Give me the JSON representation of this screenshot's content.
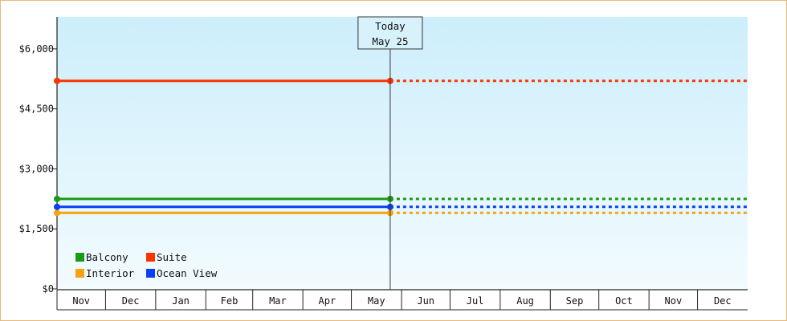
{
  "chart_data": {
    "type": "line",
    "title": "",
    "xlabel": "",
    "ylabel": "",
    "y_ticks": [
      "$0",
      "$1,500",
      "$3,000",
      "$4,500",
      "$6,000"
    ],
    "y_tick_values": [
      0,
      1500,
      3000,
      4500,
      6000
    ],
    "ylim": [
      0,
      6800
    ],
    "x_months": [
      "Nov",
      "Dec",
      "Jan",
      "Feb",
      "Mar",
      "Apr",
      "May",
      "Jun",
      "Jul",
      "Aug",
      "Sep",
      "Oct",
      "Nov",
      "Dec"
    ],
    "x_range": [
      "2023-11-01",
      "2024-12-31"
    ],
    "today": {
      "date": "2024-05-25",
      "label_line1": "Today",
      "label_line2": "May 25"
    },
    "grid": false,
    "legend_position": "bottom-left",
    "series": [
      {
        "name": "Balcony",
        "color": "#1a9a1a",
        "x": [
          "2023-11-01",
          "2024-05-25"
        ],
        "values": [
          2250,
          2250
        ],
        "projection_end": "2024-12-31"
      },
      {
        "name": "Suite",
        "color": "#ff3300",
        "x": [
          "2023-11-01",
          "2024-05-25"
        ],
        "values": [
          5200,
          5200
        ],
        "projection_end": "2024-12-31"
      },
      {
        "name": "Interior",
        "color": "#f5a310",
        "x": [
          "2023-11-01",
          "2024-05-25"
        ],
        "values": [
          1900,
          1900
        ],
        "projection_end": "2024-12-31"
      },
      {
        "name": "Ocean View",
        "color": "#0a3ff5",
        "x": [
          "2023-11-01",
          "2024-05-25"
        ],
        "values": [
          2050,
          2050
        ],
        "projection_end": "2024-12-31"
      }
    ],
    "legend_order": [
      "Balcony",
      "Suite",
      "Interior",
      "Ocean View"
    ],
    "background": {
      "top": "#cdeefb",
      "bottom": "#f2fbfe"
    }
  }
}
